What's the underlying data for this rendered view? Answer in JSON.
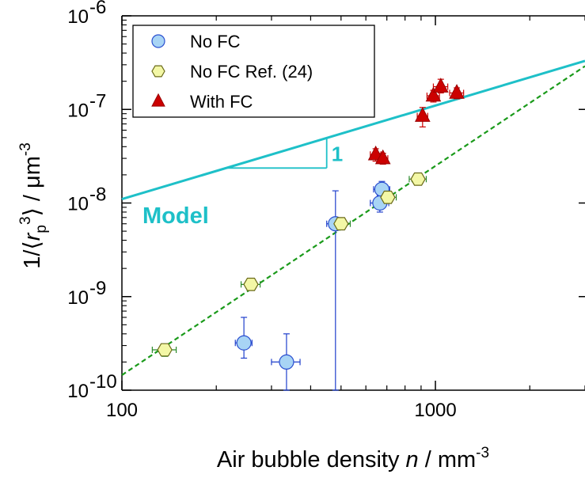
{
  "chart_data": {
    "type": "scatter",
    "x_scale": "log",
    "y_scale": "log",
    "xlim": [
      100,
      3000
    ],
    "ylim": [
      1e-10,
      1e-06
    ],
    "x_ticks": [
      {
        "value": 100,
        "label": "100"
      },
      {
        "value": 1000,
        "label": "1000"
      }
    ],
    "y_ticks": [
      {
        "value": 1e-10,
        "base": "10",
        "exp": "-10"
      },
      {
        "value": 1e-09,
        "base": "10",
        "exp": "-9"
      },
      {
        "value": 1e-08,
        "base": "10",
        "exp": "-8"
      },
      {
        "value": 1e-07,
        "base": "10",
        "exp": "-7"
      },
      {
        "value": 1e-06,
        "base": "10",
        "exp": "-6"
      }
    ],
    "xlabel": {
      "prefix": "Air bubble density ",
      "italic": "n",
      "mid": " / mm",
      "sup": "-3"
    },
    "ylabel": {
      "prefix": "1/⟨",
      "italic": "r",
      "sub": "p",
      "sup": "3",
      "mid": "⟩ / μm",
      "sup2": "-3"
    },
    "legend_position": "top-left",
    "grid": false,
    "series": [
      {
        "name": "No FC",
        "marker": "circle",
        "fill": "#a8d4f5",
        "stroke": "#2a4fd0",
        "points": [
          {
            "x": 245,
            "y": 3.2e-10,
            "xerr": 15,
            "yerr_low": 2.2e-10,
            "yerr_high": 6e-10
          },
          {
            "x": 335,
            "y": 2e-10,
            "xerr": 35,
            "yerr_low": 1e-10,
            "yerr_high": 4e-10
          },
          {
            "x": 480,
            "y": 6e-09,
            "xerr": 30,
            "yerr_low": 1e-10,
            "yerr_high": 1.35e-08
          },
          {
            "x": 675,
            "y": 1.4e-08,
            "xerr": 40,
            "yerr_low": 1.1e-08,
            "yerr_high": 1.7e-08
          },
          {
            "x": 665,
            "y": 1e-08,
            "xerr": 45,
            "yerr_low": 8e-09,
            "yerr_high": 1.2e-08
          }
        ]
      },
      {
        "name": "No FC Ref. (24)",
        "marker": "hexagon",
        "fill": "#f3f7a6",
        "stroke": "#6a6a18",
        "points": [
          {
            "x": 137,
            "y": 2.7e-10,
            "xerr": 12,
            "yerr_low": 2.3e-10,
            "yerr_high": 3.1e-10
          },
          {
            "x": 258,
            "y": 1.35e-09,
            "xerr": 18,
            "yerr_low": 1.25e-09,
            "yerr_high": 1.45e-09
          },
          {
            "x": 500,
            "y": 6e-09,
            "xerr": 35,
            "yerr_low": 5.5e-09,
            "yerr_high": 6.5e-09
          },
          {
            "x": 705,
            "y": 1.15e-08,
            "xerr": 45,
            "yerr_low": 1.05e-08,
            "yerr_high": 1.25e-08
          },
          {
            "x": 880,
            "y": 1.8e-08,
            "xerr": 55,
            "yerr_low": 1.65e-08,
            "yerr_high": 1.95e-08
          }
        ]
      },
      {
        "name": "With FC",
        "marker": "triangle",
        "fill": "#cc0000",
        "stroke": "#990000",
        "points": [
          {
            "x": 645,
            "y": 3.3e-08,
            "xerr": 25,
            "yerr_low": 2.8e-08,
            "yerr_high": 3.8e-08
          },
          {
            "x": 680,
            "y": 3e-08,
            "xerr": 25,
            "yerr_low": 2.6e-08,
            "yerr_high": 3.4e-08
          },
          {
            "x": 910,
            "y": 8.5e-08,
            "xerr": 35,
            "yerr_low": 6.5e-08,
            "yerr_high": 1.05e-07
          },
          {
            "x": 985,
            "y": 1.4e-07,
            "xerr": 45,
            "yerr_low": 1.2e-07,
            "yerr_high": 1.6e-07
          },
          {
            "x": 1040,
            "y": 1.75e-07,
            "xerr": 55,
            "yerr_low": 1.5e-07,
            "yerr_high": 2.1e-07
          },
          {
            "x": 1170,
            "y": 1.5e-07,
            "xerr": 60,
            "yerr_low": 1.3e-07,
            "yerr_high": 1.7e-07
          }
        ]
      }
    ],
    "lines": [
      {
        "label": "Model",
        "color": "#1ec0c8",
        "style": "solid",
        "x": [
          100,
          3000
        ],
        "y": [
          1.1e-08,
          3.3e-07
        ]
      },
      {
        "label": "",
        "color": "#1a9a1a",
        "style": "dashed",
        "x": [
          100,
          3000
        ],
        "y": [
          1.45e-10,
          2.9e-07
        ]
      }
    ],
    "annotations": [
      {
        "text": "Model",
        "color": "#1ec0c8"
      },
      {
        "text": "1",
        "color": "#1ec0c8"
      }
    ],
    "slope_triangle": {
      "x1": 215,
      "x2": 450,
      "y_base": 2.35e-08,
      "color": "#1ec0c8"
    }
  }
}
